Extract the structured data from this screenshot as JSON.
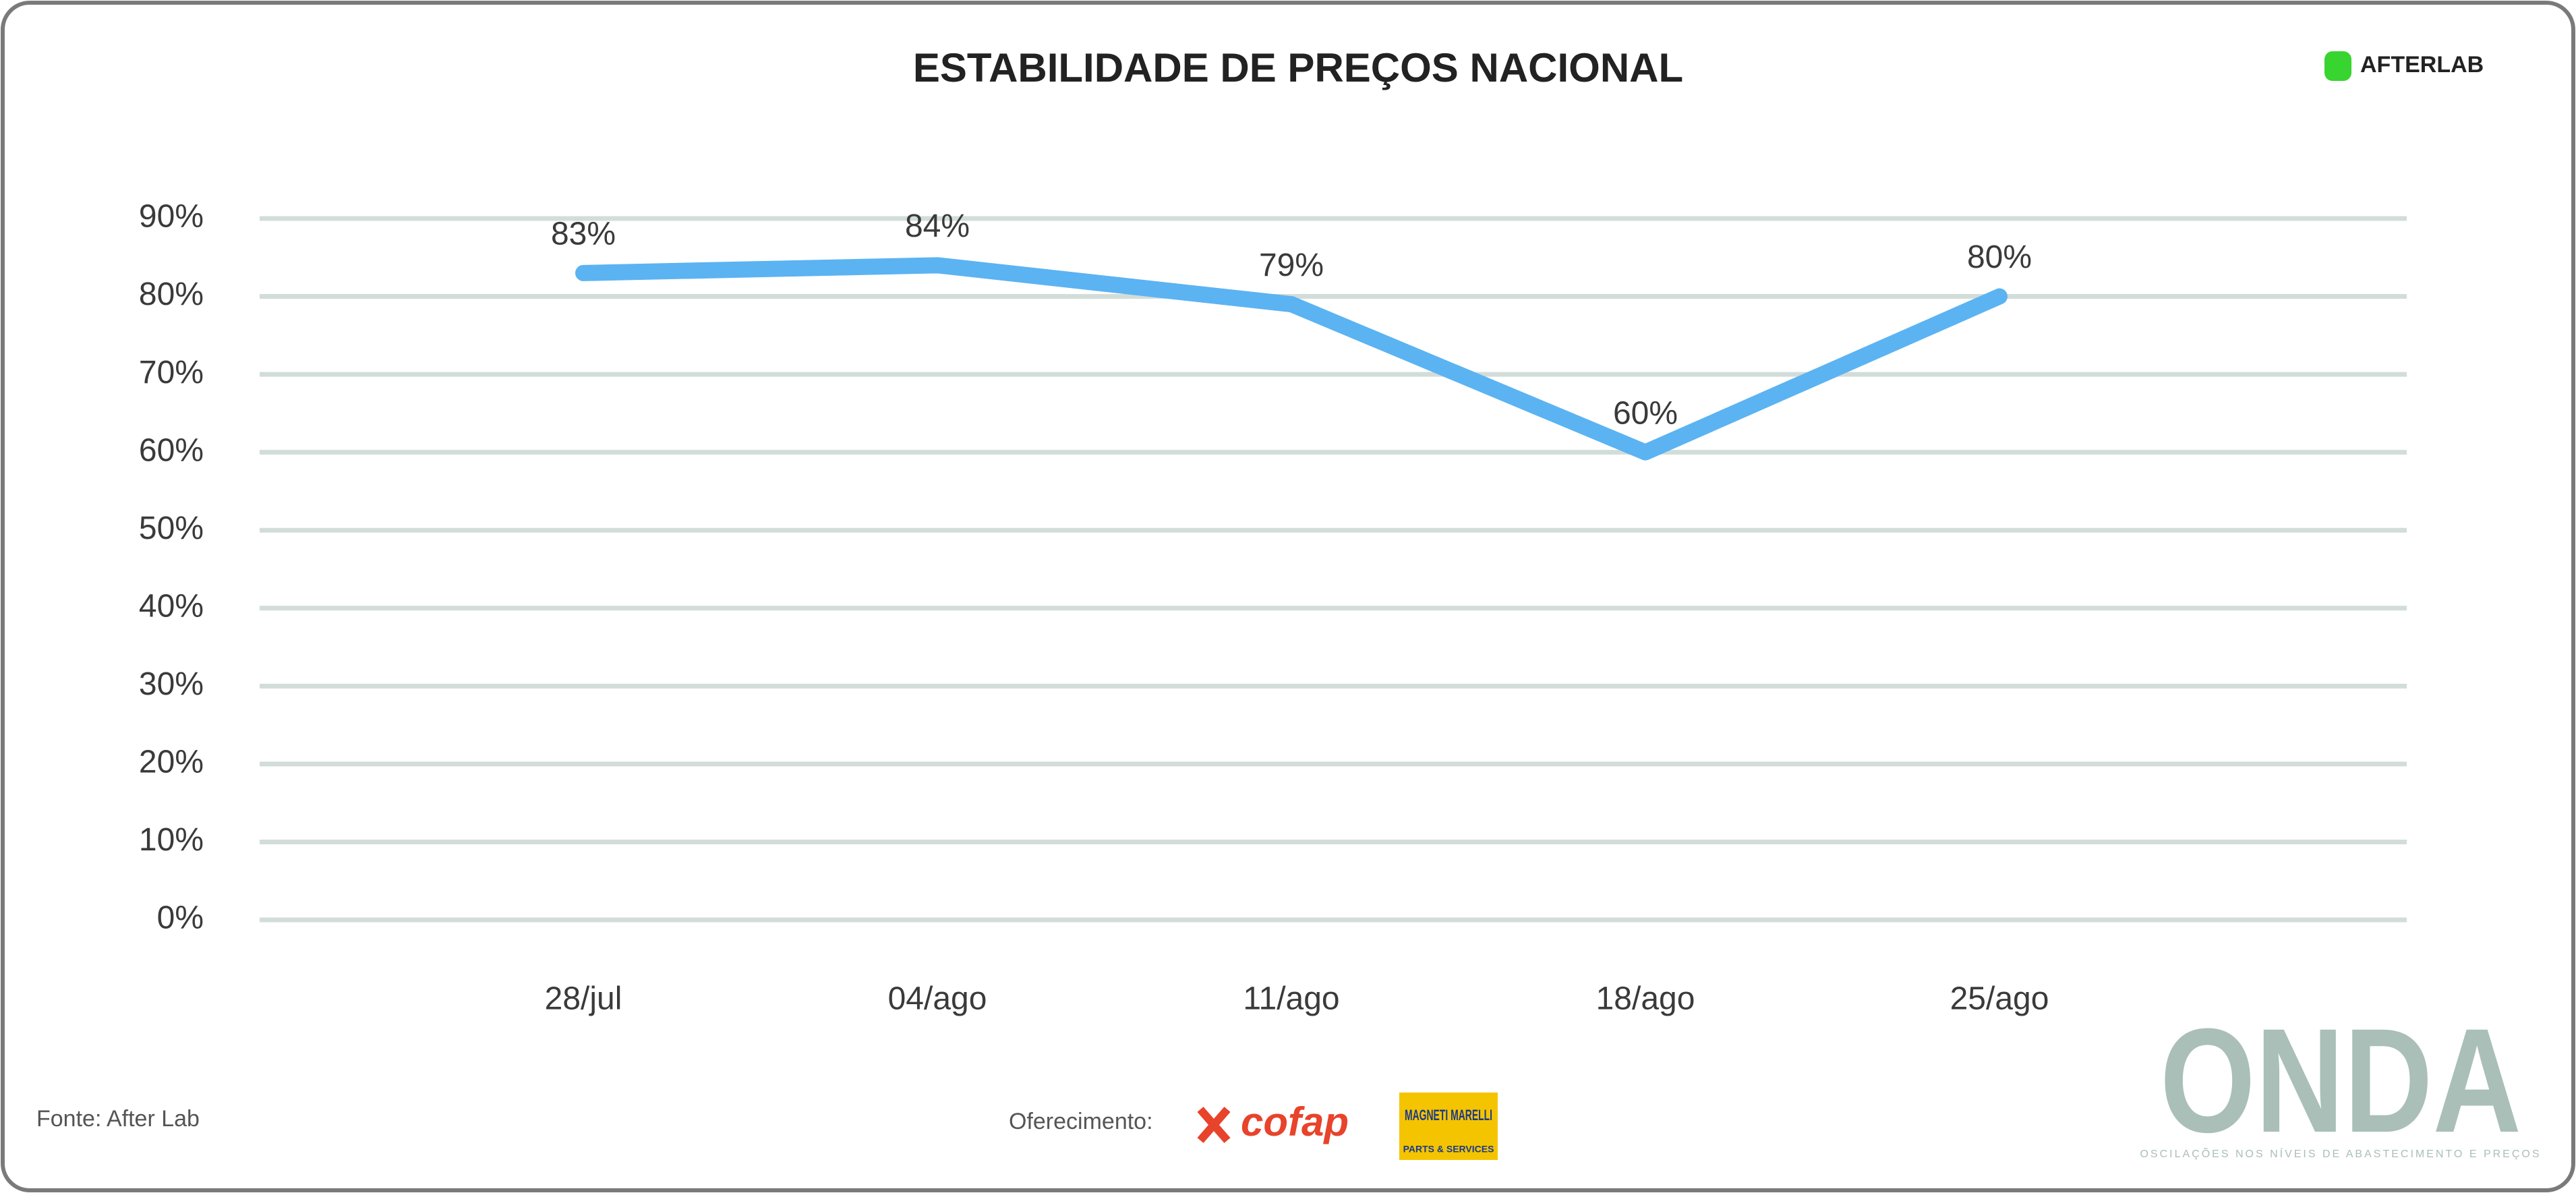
{
  "chart_data": {
    "type": "line",
    "title": "ESTABILIDADE DE PREÇOS NACIONAL",
    "categories": [
      "28/jul",
      "04/ago",
      "11/ago",
      "18/ago",
      "25/ago"
    ],
    "values": [
      83,
      84,
      79,
      60,
      80
    ],
    "value_labels": [
      "83%",
      "84%",
      "79%",
      "60%",
      "80%"
    ],
    "color": "#5bb3f2",
    "ylim": [
      0,
      90
    ],
    "yticks": [
      {
        "value": 0,
        "label": "0%"
      },
      {
        "value": 10,
        "label": "10%"
      },
      {
        "value": 20,
        "label": "20%"
      },
      {
        "value": 30,
        "label": "30%"
      },
      {
        "value": 40,
        "label": "40%"
      },
      {
        "value": 50,
        "label": "50%"
      },
      {
        "value": 60,
        "label": "60%"
      },
      {
        "value": 70,
        "label": "70%"
      },
      {
        "value": 80,
        "label": "80%"
      },
      {
        "value": 90,
        "label": "90%"
      }
    ],
    "grid": true
  },
  "header": {
    "logo": "AFTERLAB"
  },
  "footer": {
    "source": "Fonte: After Lab",
    "sponsor_label": "Oferecimento:",
    "sponsor_1": "cofap",
    "sponsor_2": "MAGNETI MARELLI",
    "sponsor_2_sub": "PARTS & SERVICES",
    "brand": "ONDA",
    "brand_tagline": "OSCILAÇÕES NOS NÍVEIS DE ABASTECIMENTO E PREÇOS"
  }
}
